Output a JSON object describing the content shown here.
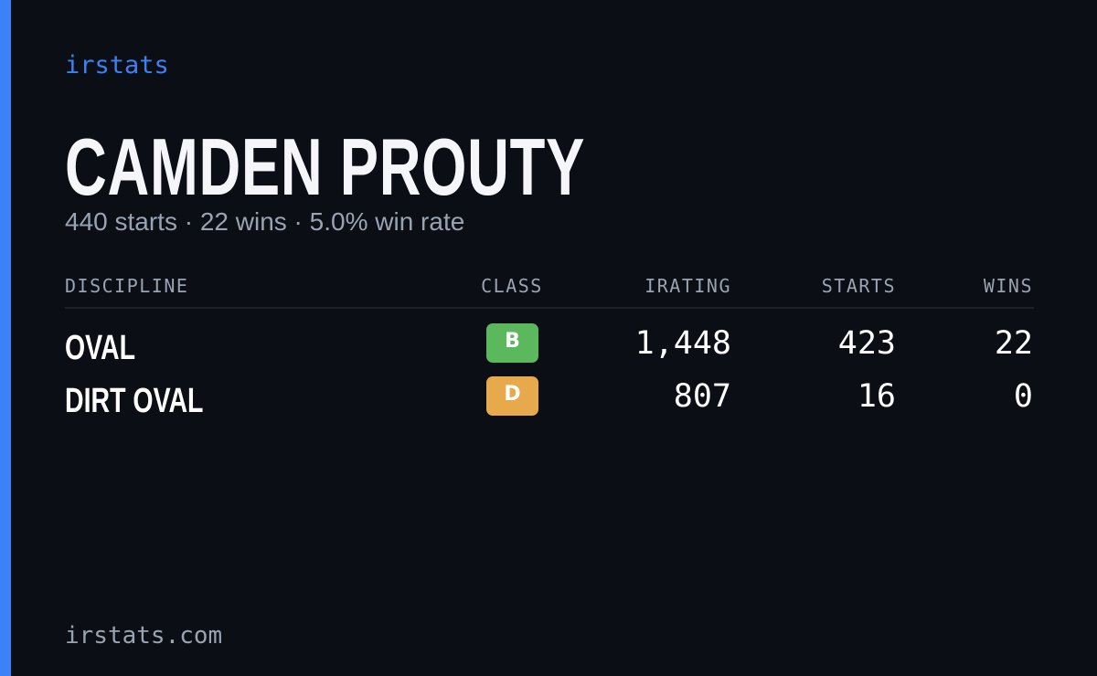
{
  "brand": "irstats",
  "name": "CAMDEN PROUTY",
  "summary": "440 starts · 22 wins · 5.0% win rate",
  "table": {
    "headers": [
      "DISCIPLINE",
      "CLASS",
      "IRATING",
      "STARTS",
      "WINS"
    ],
    "rows": [
      {
        "discipline": "OVAL",
        "class": "B",
        "class_color": "#5cb85c",
        "irating": "1,448",
        "starts": 423,
        "wins": 22
      },
      {
        "discipline": "DIRT OVAL",
        "class": "D",
        "class_color": "#e8a94c",
        "irating": 807,
        "starts": 16,
        "wins": 0
      }
    ]
  },
  "footer": "irstats.com"
}
